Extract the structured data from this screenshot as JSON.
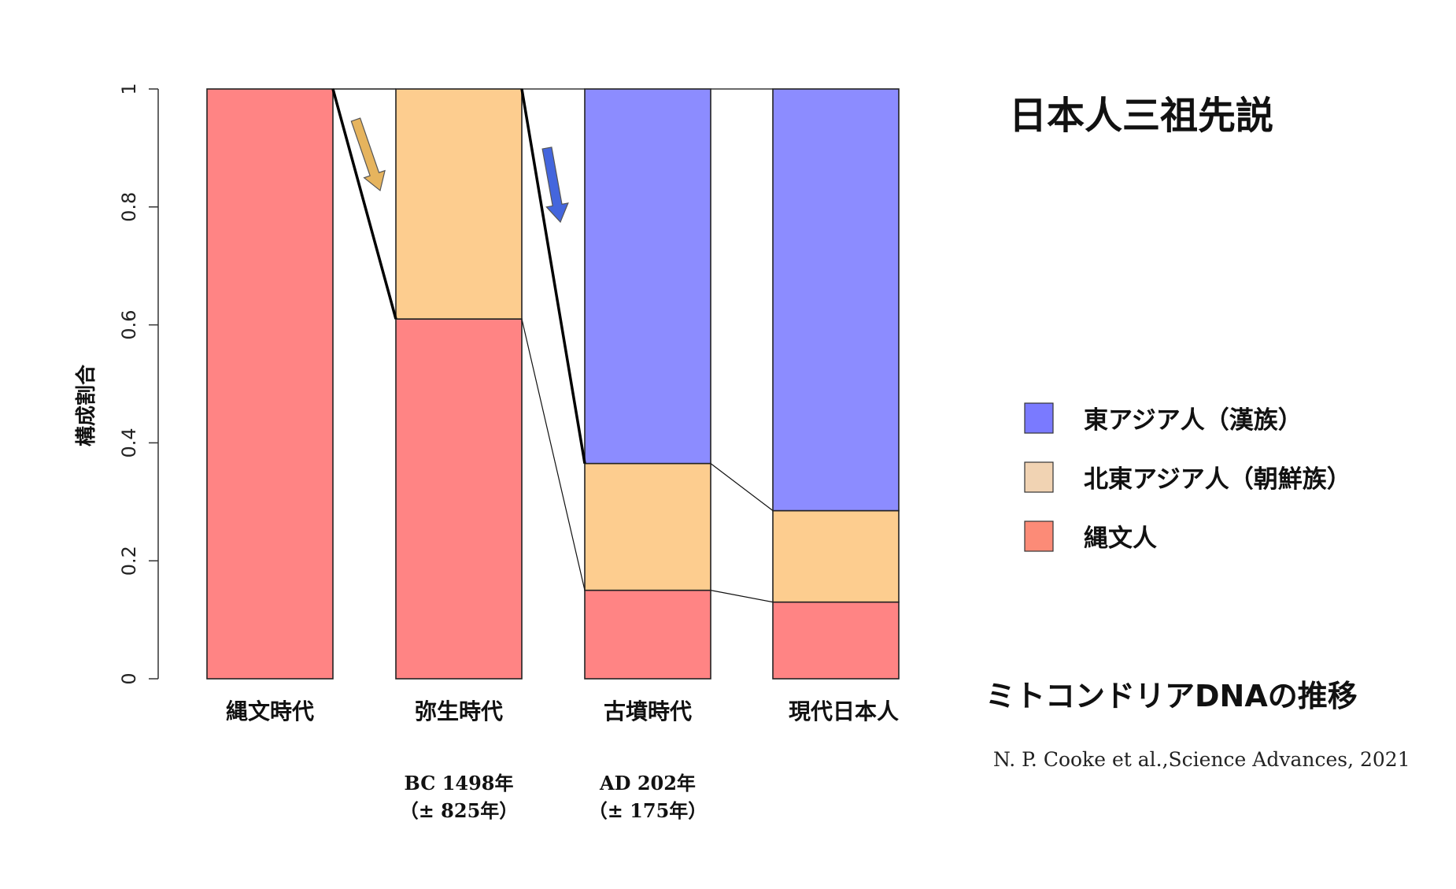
{
  "title": "日本人三祖先説",
  "subtitle": "ミトコンドリアDNAの推移",
  "citation": "N. P. Cooke et al.,Science Advances, 2021",
  "colors": {
    "east_asian": "#8c8cff",
    "northeast_asian": "#fdcd8f",
    "jomon": "#ff8484",
    "legend_east_asian": "#7a7aff",
    "legend_northeast_asian": "#f1d3b3",
    "legend_jomon": "#fc8b77",
    "arrow_gold": "#e6b45e",
    "arrow_blue": "#4466dd"
  },
  "chart_data": {
    "type": "bar",
    "stacked": true,
    "categories": [
      "縄文時代",
      "弥生時代",
      "古墳時代",
      "現代日本人"
    ],
    "category_notes": [
      [],
      [
        "BC 1498年",
        "（± 825年）"
      ],
      [
        "AD 202年",
        "（± 175年）"
      ],
      []
    ],
    "series": [
      {
        "name": "縄文人",
        "color_key": "jomon",
        "values": [
          1.0,
          0.61,
          0.15,
          0.13
        ]
      },
      {
        "name": "北東アジア人（朝鮮族）",
        "color_key": "northeast_asian",
        "values": [
          0.0,
          0.39,
          0.215,
          0.155
        ]
      },
      {
        "name": "東アジア人（漢族）",
        "color_key": "east_asian",
        "values": [
          0.0,
          0.0,
          0.635,
          0.715
        ]
      }
    ],
    "legend_order": [
      "東アジア人（漢族）",
      "北東アジア人（朝鮮族）",
      "縄文人"
    ],
    "legend_color_keys": [
      "legend_east_asian",
      "legend_northeast_asian",
      "legend_jomon"
    ],
    "ylabel": "構成割合",
    "xlabel": "",
    "ylim": [
      0,
      1
    ],
    "yticks": [
      "0",
      "0.2",
      "0.4",
      "0.6",
      "0.8",
      "1"
    ],
    "grid": false,
    "legend_position": "right"
  }
}
